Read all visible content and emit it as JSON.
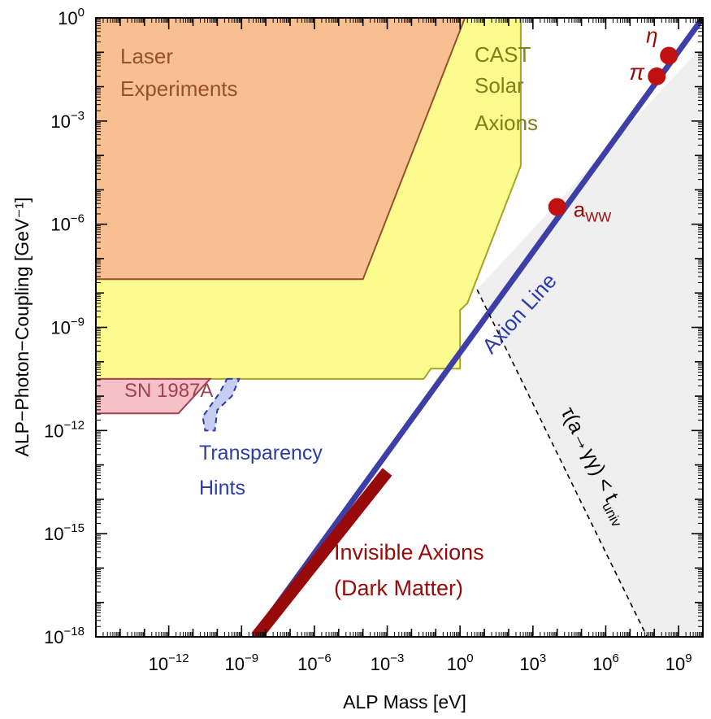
{
  "chart_data": {
    "type": "area",
    "xlabel": "ALP Mass [eV]",
    "ylabel": "ALP−Photon−Coupling [GeV⁻¹]",
    "x_scale": "log10",
    "y_scale": "log10",
    "xlim_log10": [
      -15,
      10
    ],
    "ylim_log10": [
      -18,
      0
    ],
    "x_tick_labels": [
      {
        "base": "10",
        "exp": "−12",
        "log10": -12
      },
      {
        "base": "10",
        "exp": "−9",
        "log10": -9
      },
      {
        "base": "10",
        "exp": "−6",
        "log10": -6
      },
      {
        "base": "10",
        "exp": "−3",
        "log10": -3
      },
      {
        "base": "10",
        "exp": "0",
        "log10": 0
      },
      {
        "base": "10",
        "exp": "3",
        "log10": 3
      },
      {
        "base": "10",
        "exp": "6",
        "log10": 6
      },
      {
        "base": "10",
        "exp": "9",
        "log10": 9
      }
    ],
    "y_tick_labels": [
      {
        "base": "10",
        "exp": "0",
        "log10": 0
      },
      {
        "base": "10",
        "exp": "−3",
        "log10": -3
      },
      {
        "base": "10",
        "exp": "−6",
        "log10": -6
      },
      {
        "base": "10",
        "exp": "−9",
        "log10": -9
      },
      {
        "base": "10",
        "exp": "−12",
        "log10": -12
      },
      {
        "base": "10",
        "exp": "−15",
        "log10": -15
      },
      {
        "base": "10",
        "exp": "−18",
        "log10": -18
      }
    ],
    "regions": [
      {
        "name": "CAST Solar Axions",
        "label_lines": [
          "CAST",
          "Solar",
          "Axions"
        ],
        "color": "#fbfb8e",
        "stroke": "#a4a42a",
        "points_log10": [
          [
            -15,
            0
          ],
          [
            2.5,
            0
          ],
          [
            2.5,
            -4.3
          ],
          [
            0.3,
            -8.3
          ],
          [
            0.0,
            -8.5
          ],
          [
            0.0,
            -10.2
          ],
          [
            -1.2,
            -10.2
          ],
          [
            -1.5,
            -10.5
          ],
          [
            -15,
            -10.5
          ]
        ]
      },
      {
        "name": "Laser Experiments",
        "label_lines": [
          "Laser",
          "Experiments"
        ],
        "color": "#f8c090",
        "stroke": "#96502a",
        "points_log10": [
          [
            -15,
            0
          ],
          [
            0.2,
            0
          ],
          [
            -4.0,
            -7.6
          ],
          [
            -15,
            -7.6
          ]
        ]
      },
      {
        "name": "SN 1987A",
        "label_lines": [
          "SN 1987A"
        ],
        "color": "#f5c0c6",
        "stroke": "#a04050",
        "points_log10": [
          [
            -15,
            -10.5
          ],
          [
            -10.3,
            -10.5
          ],
          [
            -11.6,
            -11.5
          ],
          [
            -15,
            -11.5
          ]
        ]
      },
      {
        "name": "Transparency Hints",
        "label_lines": [
          "Transparency",
          "Hints"
        ],
        "color": "#c6cdf3",
        "stroke": "#2c3ca8",
        "points_log10": [
          [
            -9.6,
            -10.5
          ],
          [
            -9.1,
            -10.5
          ],
          [
            -9.4,
            -11.0
          ],
          [
            -10.0,
            -11.4
          ],
          [
            -10.1,
            -12.0
          ],
          [
            -10.5,
            -12.0
          ],
          [
            -10.6,
            -11.6
          ],
          [
            -9.9,
            -10.9
          ]
        ]
      },
      {
        "name": "Decay region",
        "color": "#efefef",
        "points_log10": [
          [
            0.7,
            -7.9
          ],
          [
            10,
            -0.8
          ],
          [
            10,
            -18
          ],
          [
            7.7,
            -18
          ]
        ]
      }
    ],
    "lines": [
      {
        "name": "Axion Line",
        "label": "Axion Line",
        "color": "#3e3fa6",
        "points_log10": [
          [
            -8.5,
            -18
          ],
          [
            10,
            -0.0
          ]
        ]
      },
      {
        "name": "Invisible Axions",
        "label_lines": [
          "Invisible Axions",
          "(Dark Matter)"
        ],
        "color": "#980909",
        "points_log10": [
          [
            -8.4,
            -18
          ],
          [
            -3.0,
            -13.2
          ]
        ]
      },
      {
        "name": "Decay boundary",
        "label": "τ(a→γγ) < t",
        "label_sub": "univ",
        "color": "#000000",
        "dashed": true,
        "points_log10": [
          [
            0.7,
            -7.9
          ],
          [
            7.7,
            -18
          ]
        ]
      }
    ],
    "points": [
      {
        "label": "a",
        "label_sub": "WW",
        "x_log10": 4.0,
        "y_log10": -5.5,
        "color": "#c01010"
      },
      {
        "label": "π",
        "x_log10": 8.1,
        "y_log10": -1.7,
        "color": "#c01010"
      },
      {
        "label": "η",
        "x_log10": 8.6,
        "y_log10": -1.1,
        "color": "#c01010"
      }
    ]
  }
}
